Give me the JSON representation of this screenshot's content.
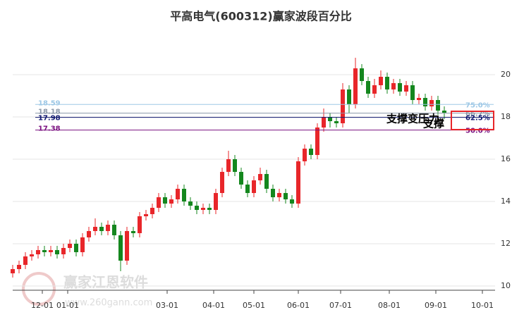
{
  "chart_data": {
    "type": "candlestick",
    "title": "平高电气(600312)赢家波段百分比",
    "watermark": "赢家江恩软件",
    "watermark_url": "www.260gann.com",
    "annotations": [
      "支撑变压力",
      "支撑"
    ],
    "up_color": "#e8262a",
    "down_color": "#14871e",
    "grid": true,
    "xlim": [
      0,
      228
    ],
    "xticks": [
      {
        "value": 14,
        "label": "12-01"
      },
      {
        "value": 26,
        "label": "01-01"
      },
      {
        "value": 73,
        "label": "03-01"
      },
      {
        "value": 95,
        "label": "04-01"
      },
      {
        "value": 114,
        "label": "05-01"
      },
      {
        "value": 135,
        "label": "06-01"
      },
      {
        "value": 155,
        "label": "07-01"
      },
      {
        "value": 178,
        "label": "08-01"
      },
      {
        "value": 200,
        "label": "09-01"
      },
      {
        "value": 222,
        "label": "10-01"
      }
    ],
    "ylim": [
      9.8,
      22.2
    ],
    "yticks": [
      10,
      12,
      14,
      16,
      18,
      20
    ],
    "x": [
      0,
      3,
      6,
      9,
      12,
      15,
      18,
      21,
      24,
      27,
      30,
      33,
      36,
      39,
      42,
      45,
      48,
      51,
      54,
      57,
      60,
      63,
      66,
      69,
      72,
      75,
      78,
      81,
      84,
      87,
      90,
      93,
      96,
      99,
      102,
      105,
      108,
      111,
      114,
      117,
      120,
      123,
      126,
      129,
      132,
      135,
      138,
      141,
      144,
      147,
      150,
      153,
      156,
      159,
      162,
      165,
      168,
      171,
      174,
      177,
      180,
      183,
      186,
      189,
      192,
      195,
      198,
      201,
      204
    ],
    "open": [
      10.6,
      10.8,
      11.0,
      11.4,
      11.5,
      11.7,
      11.6,
      11.7,
      11.5,
      11.8,
      12.0,
      11.6,
      12.3,
      12.6,
      12.8,
      12.6,
      12.9,
      12.4,
      11.2,
      12.6,
      12.5,
      13.3,
      13.4,
      13.7,
      14.2,
      13.9,
      14.1,
      14.6,
      14.0,
      13.8,
      13.6,
      13.7,
      13.6,
      14.4,
      15.4,
      16.0,
      15.4,
      14.8,
      14.4,
      15.0,
      15.3,
      14.6,
      14.2,
      14.4,
      14.1,
      13.9,
      15.9,
      16.5,
      16.2,
      17.5,
      18.0,
      17.8,
      17.7,
      19.3,
      18.6,
      20.3,
      19.7,
      19.1,
      19.5,
      19.9,
      19.3,
      19.6,
      19.2,
      19.5,
      18.8,
      18.9,
      18.5,
      18.8,
      18.3
    ],
    "close": [
      10.8,
      11.0,
      11.4,
      11.5,
      11.7,
      11.6,
      11.7,
      11.5,
      11.8,
      12.0,
      11.6,
      12.3,
      12.6,
      12.8,
      12.6,
      12.9,
      12.4,
      11.2,
      12.6,
      12.5,
      13.3,
      13.4,
      13.7,
      14.2,
      13.9,
      14.1,
      14.6,
      14.0,
      13.8,
      13.6,
      13.7,
      13.6,
      14.4,
      15.4,
      16.0,
      15.4,
      14.8,
      14.4,
      15.0,
      15.3,
      14.6,
      14.2,
      14.4,
      14.1,
      13.9,
      15.9,
      16.5,
      16.2,
      17.5,
      18.0,
      17.8,
      17.7,
      19.3,
      18.6,
      20.3,
      19.7,
      19.1,
      19.5,
      19.9,
      19.3,
      19.6,
      19.2,
      19.5,
      18.8,
      18.9,
      18.5,
      18.8,
      18.3,
      18.2
    ],
    "high": [
      11.0,
      11.2,
      11.6,
      11.7,
      11.9,
      11.9,
      11.9,
      11.9,
      12.0,
      12.2,
      12.2,
      12.5,
      12.8,
      13.2,
      13.0,
      13.1,
      13.1,
      12.6,
      12.8,
      12.8,
      13.5,
      13.6,
      13.9,
      14.4,
      14.4,
      14.3,
      14.8,
      14.8,
      14.2,
      14.0,
      13.9,
      13.9,
      14.6,
      15.6,
      16.4,
      16.2,
      15.6,
      15.0,
      15.2,
      15.6,
      15.5,
      14.8,
      14.6,
      14.6,
      14.3,
      16.1,
      16.7,
      16.7,
      17.7,
      18.4,
      18.2,
      18.0,
      19.6,
      19.5,
      20.8,
      20.5,
      19.9,
      19.8,
      20.2,
      20.1,
      19.8,
      19.8,
      19.7,
      19.7,
      19.1,
      19.1,
      19.0,
      19.0,
      18.5
    ],
    "low": [
      10.4,
      10.6,
      10.8,
      11.2,
      11.3,
      11.4,
      11.4,
      11.3,
      11.3,
      11.6,
      11.4,
      11.4,
      12.1,
      12.4,
      12.4,
      12.4,
      12.2,
      10.7,
      11.0,
      12.3,
      12.3,
      13.1,
      13.2,
      13.5,
      13.7,
      13.7,
      13.9,
      13.8,
      13.6,
      13.4,
      13.4,
      13.4,
      13.4,
      14.2,
      15.2,
      15.2,
      14.6,
      14.2,
      14.2,
      14.8,
      14.4,
      14.0,
      14.0,
      13.9,
      13.7,
      13.7,
      15.7,
      16.0,
      16.0,
      17.3,
      17.5,
      17.5,
      17.5,
      18.2,
      18.4,
      19.5,
      18.9,
      18.9,
      19.3,
      19.1,
      19.1,
      19.0,
      19.0,
      18.6,
      18.6,
      18.3,
      18.3,
      18.1,
      17.9
    ],
    "levels": [
      {
        "value": 18.59,
        "pct_label": "75.0%",
        "color": "#9ec8e6"
      },
      {
        "value": 18.18,
        "pct_label": "66.7%",
        "color": "#8a97a8"
      },
      {
        "value": 17.98,
        "pct_label": "62.5%",
        "color": "#101870"
      },
      {
        "value": 17.38,
        "pct_label": "50.0%",
        "color": "#7a1080"
      }
    ]
  }
}
